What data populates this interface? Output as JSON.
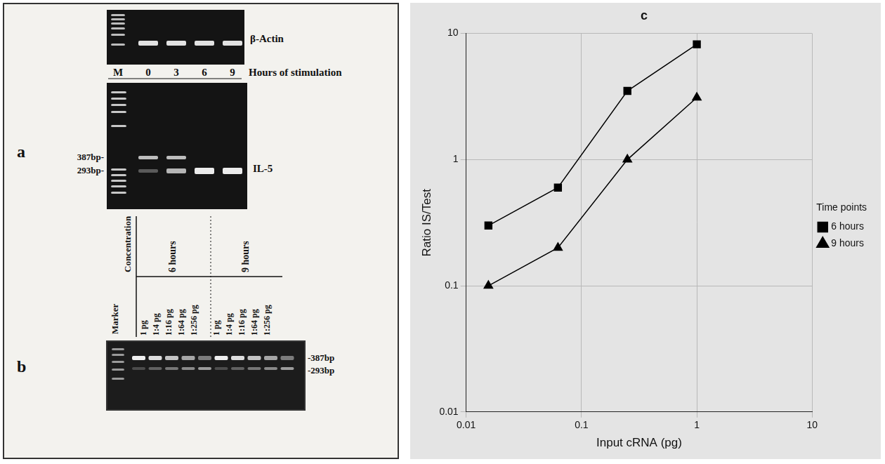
{
  "gel_a": {
    "letter": "a",
    "top_gel_label": "β-Actin",
    "lanes": [
      "M",
      "0",
      "3",
      "6",
      "9"
    ],
    "lane_caption": "Hours of stimulation",
    "bottom_gel_label": "IL-5",
    "size_labels": [
      "387bp-",
      "293bp-"
    ]
  },
  "gel_b": {
    "letter": "b",
    "marker_label": "Marker",
    "concentration_label": "Concentration",
    "groups": [
      {
        "name": "6 hours",
        "lanes": [
          "1 pg",
          "1:4 pg",
          "1:16 pg",
          "1:64 pg",
          "1:256 pg"
        ]
      },
      {
        "name": "9 hours",
        "lanes": [
          "1 pg",
          "1:4 pg",
          "1:16 pg",
          "1:64 pg",
          "1:256 pg"
        ]
      }
    ],
    "size_labels": [
      "-387bp",
      "-293bp"
    ]
  },
  "chart_data": {
    "type": "line",
    "title": "c",
    "x_label": "Input cRNA (pg)",
    "y_label": "Ratio IS/Test",
    "log": true,
    "grid": true,
    "xlim": [
      0.01,
      10
    ],
    "ylim": [
      0.01,
      10
    ],
    "xticks": [
      0.01,
      0.1,
      1,
      10
    ],
    "yticks": [
      0.01,
      0.1,
      1,
      10
    ],
    "legend": "right",
    "legend_title": "Time points",
    "x": [
      0.0156,
      0.0625,
      0.25,
      1
    ],
    "series": [
      {
        "name": "6 hours",
        "color": "#000000",
        "marker": "square",
        "values": [
          0.3,
          0.6,
          3.5,
          8.2
        ]
      },
      {
        "name": "9 hours",
        "color": "#000000",
        "marker": "triangle",
        "values": [
          0.1,
          0.2,
          1.0,
          3.1
        ]
      }
    ]
  }
}
